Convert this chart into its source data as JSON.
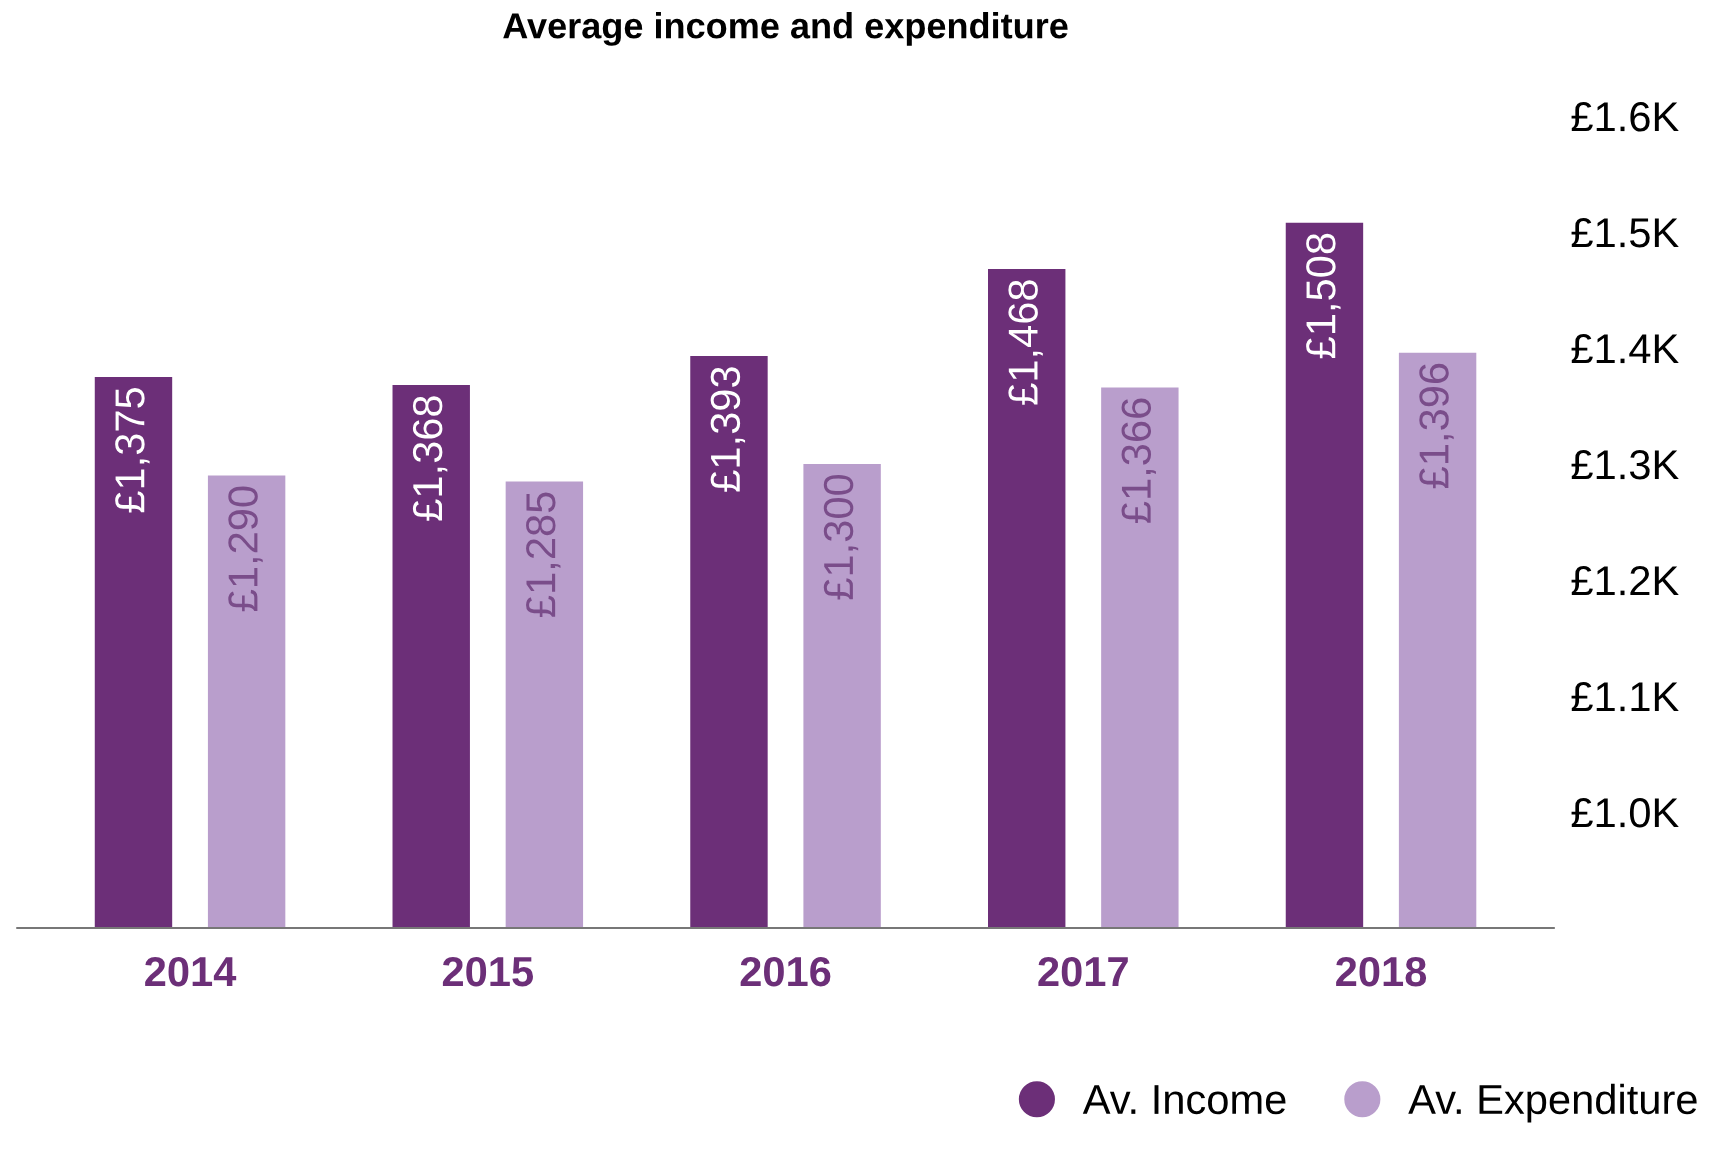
{
  "chart_data": {
    "type": "bar",
    "title": "Average income and expenditure",
    "categories": [
      "2014",
      "2015",
      "2016",
      "2017",
      "2018"
    ],
    "series": [
      {
        "name": "Av. Income",
        "color": "#6c2f78",
        "values": [
          1375,
          1368,
          1393,
          1468,
          1508
        ],
        "value_labels": [
          "£1,375",
          "£1,368",
          "£1,393",
          "£1,468",
          "£1,508"
        ]
      },
      {
        "name": "Av. Expenditure",
        "color": "#b99ecc",
        "values": [
          1290,
          1285,
          1300,
          1366,
          1396
        ],
        "value_labels": [
          "£1,290",
          "£1,285",
          "£1,300",
          "£1,366",
          "£1,396"
        ]
      }
    ],
    "ylim": [
      900,
      1600
    ],
    "yticks": [
      {
        "value": 1000,
        "label": "£1.0K"
      },
      {
        "value": 1100,
        "label": "£1.1K"
      },
      {
        "value": 1200,
        "label": "£1.2K"
      },
      {
        "value": 1300,
        "label": "£1.3K"
      },
      {
        "value": 1400,
        "label": "£1.4K"
      },
      {
        "value": 1500,
        "label": "£1.5K"
      },
      {
        "value": 1600,
        "label": "£1.6K"
      }
    ],
    "grid": false,
    "legend": "bottom right"
  }
}
